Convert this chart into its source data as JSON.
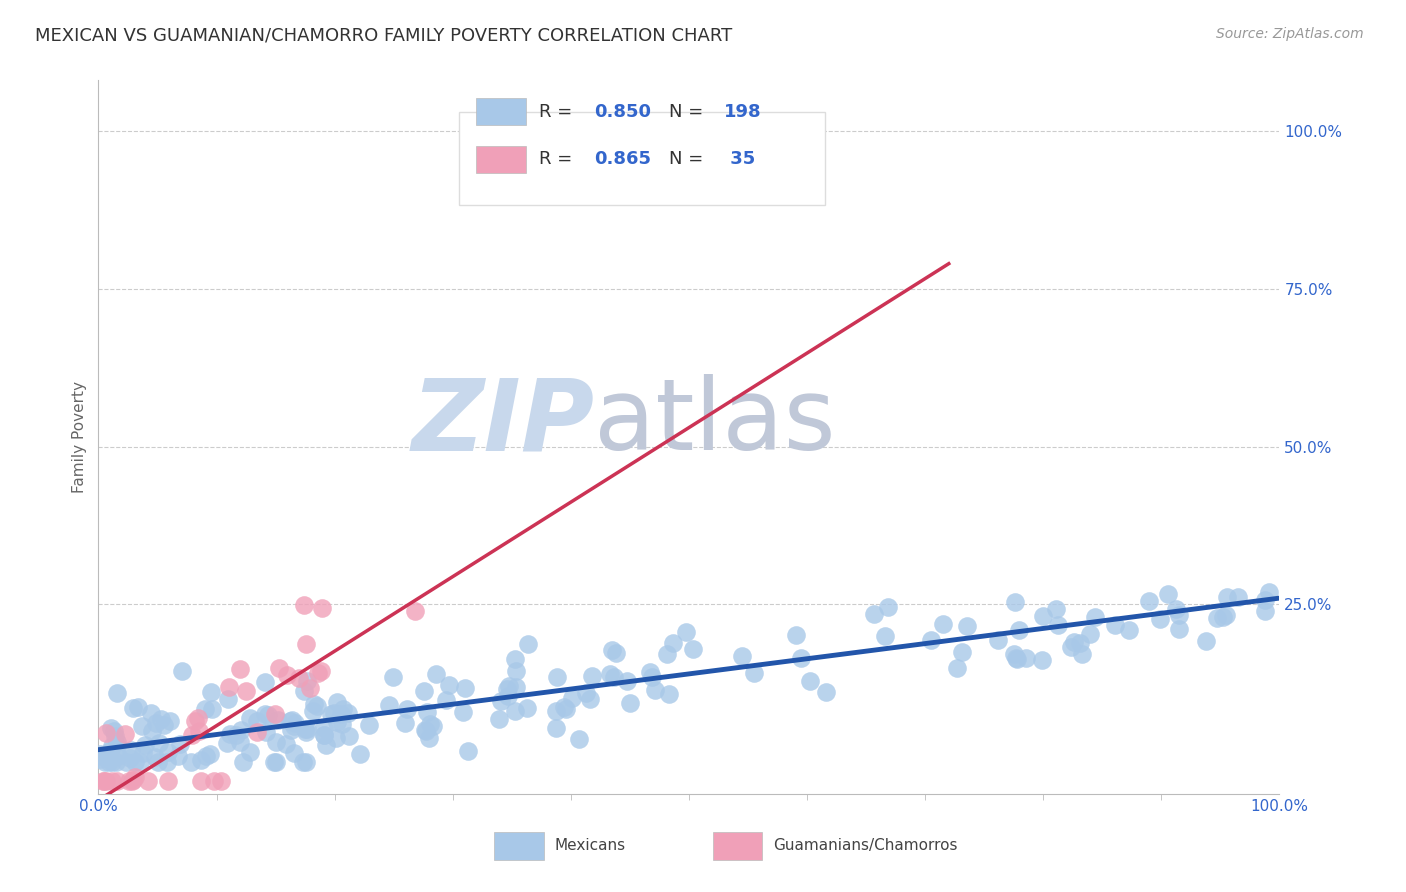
{
  "title": "MEXICAN VS GUAMANIAN/CHAMORRO FAMILY POVERTY CORRELATION CHART",
  "source_text": "Source: ZipAtlas.com",
  "ylabel": "Family Poverty",
  "watermark_zip": "ZIP",
  "watermark_atlas": "atlas",
  "xlim": [
    0,
    1
  ],
  "ylim": [
    -0.05,
    1.08
  ],
  "blue_series": {
    "label": "Mexicans",
    "color": "#a8c8e8",
    "line_color": "#2255aa",
    "R": 0.85,
    "N": 198,
    "trend_intercept": 0.02,
    "trend_slope": 0.24
  },
  "pink_series": {
    "label": "Guamanians/Chamorros",
    "color": "#f0a0b8",
    "line_color": "#cc3355",
    "R": 0.865,
    "N": 35,
    "trend_intercept": -0.06,
    "trend_slope": 1.18
  },
  "legend_R_N_color": "#3366cc",
  "title_color": "#333333",
  "grid_color": "#cccccc",
  "watermark_color": "#c8d8ec",
  "watermark_atlas_color": "#c0c8d8",
  "background_color": "#ffffff",
  "title_fontsize": 13,
  "axis_label_fontsize": 11,
  "tick_fontsize": 11,
  "legend_fontsize": 13,
  "source_fontsize": 10
}
